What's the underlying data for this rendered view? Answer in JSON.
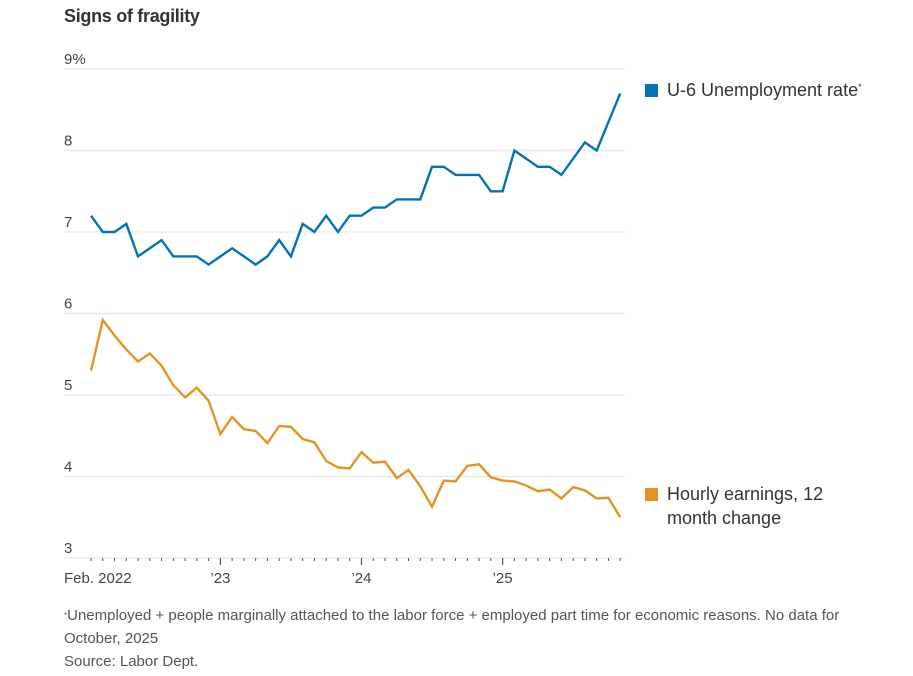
{
  "chart_data": {
    "type": "line",
    "title": "Signs of fragility",
    "xlabel": "",
    "ylabel": "",
    "ylim": [
      3,
      9
    ],
    "y_ticks": [
      {
        "value": 9,
        "label": "9%"
      },
      {
        "value": 8,
        "label": "8"
      },
      {
        "value": 7,
        "label": "7"
      },
      {
        "value": 6,
        "label": "6"
      },
      {
        "value": 5,
        "label": "5"
      },
      {
        "value": 4,
        "label": "4"
      },
      {
        "value": 3,
        "label": "3"
      }
    ],
    "x_start": "2022-02",
    "x_end": "2025-11",
    "x_ticks": [
      {
        "month_index": 0,
        "label": "Feb. 2022"
      },
      {
        "month_index": 11,
        "label": "’23"
      },
      {
        "month_index": 23,
        "label": "’24"
      },
      {
        "month_index": 35,
        "label": "’25"
      }
    ],
    "grid": true,
    "legend_placement": "right, at line ends",
    "series": [
      {
        "name": "U-6 Unemployment rate",
        "footnote_marker": "*",
        "color": "#0274b6",
        "values": [
          7.2,
          7.0,
          7.0,
          7.1,
          6.7,
          6.8,
          6.9,
          6.7,
          6.7,
          6.7,
          6.6,
          6.7,
          6.8,
          6.7,
          6.6,
          6.7,
          6.9,
          6.7,
          7.1,
          7.0,
          7.2,
          7.0,
          7.2,
          7.2,
          7.3,
          7.3,
          7.4,
          7.4,
          7.4,
          7.8,
          7.8,
          7.7,
          7.7,
          7.7,
          7.5,
          7.5,
          8.0,
          7.9,
          7.8,
          7.8,
          7.7,
          7.9,
          8.1,
          8.0,
          null,
          8.7
        ]
      },
      {
        "name": "Hourly earnings, 12 month change",
        "color": "#e39524",
        "values": [
          5.3,
          5.92,
          5.73,
          5.56,
          5.41,
          5.51,
          5.36,
          5.12,
          4.97,
          5.09,
          4.93,
          4.52,
          4.73,
          4.58,
          4.56,
          4.41,
          4.62,
          4.61,
          4.46,
          4.42,
          4.19,
          4.11,
          4.1,
          4.3,
          4.17,
          4.18,
          3.98,
          4.08,
          3.88,
          3.63,
          3.95,
          3.94,
          4.13,
          4.15,
          3.99,
          3.95,
          3.94,
          3.89,
          3.82,
          3.84,
          3.73,
          3.87,
          3.83,
          3.73,
          3.74,
          3.5
        ]
      }
    ]
  },
  "legend": {
    "u6_label": "U-6 Unemployment rate",
    "u6_marker": "*",
    "earnings_label": "Hourly earnings, 12 month change"
  },
  "footnote": {
    "marker": "*",
    "text": "Unemployed + people marginally attached to the labor force + employed part time for economic reasons. No data for October, 2025",
    "source": "Source: Labor Dept."
  }
}
